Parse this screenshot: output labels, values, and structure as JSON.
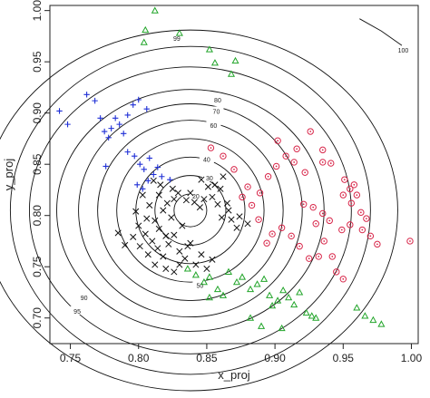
{
  "chart_data": {
    "type": "scatter",
    "xlabel": "x_proj",
    "ylabel": "y_proj",
    "xlim": [
      0.735,
      1.005
    ],
    "ylim": [
      0.675,
      1.005
    ],
    "xticks": [
      "0.75",
      "0.80",
      "0.85",
      "0.90",
      "0.95",
      "1.00"
    ],
    "yticks": [
      "0.70",
      "0.75",
      "0.80",
      "0.85",
      "0.90",
      "0.95",
      "1.00"
    ],
    "grid": false,
    "legend": "none",
    "contour_center": [
      0.838,
      0.805
    ],
    "contours": [
      {
        "level": "20",
        "rx": 0.012,
        "ry": 0.016,
        "label_at": [
          0.842,
          0.819
        ]
      },
      {
        "level": "30",
        "rx": 0.026,
        "ry": 0.034,
        "label_at": [
          0.852,
          0.837
        ]
      },
      {
        "level": "40",
        "rx": 0.04,
        "ry": 0.052,
        "label_at": [
          0.85,
          0.855
        ]
      },
      {
        "level": "50",
        "rx": 0.054,
        "ry": 0.07,
        "label_at": [
          0.845,
          0.732
        ]
      },
      {
        "level": "60",
        "rx": 0.068,
        "ry": 0.088,
        "label_at": [
          0.855,
          0.888
        ]
      },
      {
        "level": "70",
        "rx": 0.082,
        "ry": 0.104,
        "label_at": [
          0.857,
          0.902
        ]
      },
      {
        "level": "80",
        "rx": 0.098,
        "ry": 0.118,
        "label_at": [
          0.858,
          0.913
        ]
      },
      {
        "level": "90",
        "rx": 0.118,
        "ry": 0.14,
        "label_at": [
          0.76,
          0.72
        ]
      },
      {
        "level": "95",
        "rx": 0.132,
        "ry": 0.16,
        "label_at": [
          0.755,
          0.707
        ]
      },
      {
        "level": "99",
        "rx": 0.152,
        "ry": 0.176,
        "label_at": [
          0.828,
          0.973
        ]
      }
    ],
    "extra_contour": {
      "level": "100",
      "points": [
        [
          0.962,
          0.992
        ],
        [
          0.978,
          0.98
        ],
        [
          0.993,
          0.966
        ]
      ],
      "label_at": [
        0.994,
        0.959
      ]
    },
    "series": [
      {
        "marker": "plus",
        "color": "#1f2fd6",
        "points": [
          [
            0.742,
            0.902
          ],
          [
            0.748,
            0.889
          ],
          [
            0.762,
            0.918
          ],
          [
            0.768,
            0.912
          ],
          [
            0.772,
            0.895
          ],
          [
            0.775,
            0.882
          ],
          [
            0.778,
            0.876
          ],
          [
            0.78,
            0.885
          ],
          [
            0.783,
            0.895
          ],
          [
            0.786,
            0.889
          ],
          [
            0.789,
            0.88
          ],
          [
            0.792,
            0.898
          ],
          [
            0.796,
            0.908
          ],
          [
            0.8,
            0.913
          ],
          [
            0.806,
            0.904
          ],
          [
            0.792,
            0.862
          ],
          [
            0.797,
            0.858
          ],
          [
            0.801,
            0.85
          ],
          [
            0.804,
            0.845
          ],
          [
            0.808,
            0.856
          ],
          [
            0.811,
            0.84
          ],
          [
            0.814,
            0.847
          ],
          [
            0.817,
            0.838
          ],
          [
            0.799,
            0.83
          ],
          [
            0.803,
            0.826
          ],
          [
            0.807,
            0.834
          ],
          [
            0.823,
            0.835
          ],
          [
            0.776,
            0.848
          ]
        ]
      },
      {
        "marker": "cross",
        "color": "#111111",
        "points": [
          [
            0.803,
            0.82
          ],
          [
            0.808,
            0.81
          ],
          [
            0.812,
            0.795
          ],
          [
            0.815,
            0.82
          ],
          [
            0.818,
            0.805
          ],
          [
            0.821,
            0.812
          ],
          [
            0.824,
            0.798
          ],
          [
            0.826,
            0.816
          ],
          [
            0.829,
            0.822
          ],
          [
            0.832,
            0.79
          ],
          [
            0.835,
            0.815
          ],
          [
            0.838,
            0.822
          ],
          [
            0.841,
            0.813
          ],
          [
            0.845,
            0.808
          ],
          [
            0.848,
            0.816
          ],
          [
            0.851,
            0.828
          ],
          [
            0.854,
            0.818
          ],
          [
            0.858,
            0.811
          ],
          [
            0.861,
            0.798
          ],
          [
            0.865,
            0.812
          ],
          [
            0.868,
            0.796
          ],
          [
            0.872,
            0.788
          ],
          [
            0.8,
            0.79
          ],
          [
            0.805,
            0.782
          ],
          [
            0.81,
            0.775
          ],
          [
            0.814,
            0.768
          ],
          [
            0.818,
            0.76
          ],
          [
            0.822,
            0.772
          ],
          [
            0.826,
            0.781
          ],
          [
            0.83,
            0.765
          ],
          [
            0.834,
            0.758
          ],
          [
            0.838,
            0.773
          ],
          [
            0.842,
            0.752
          ],
          [
            0.846,
            0.762
          ],
          [
            0.85,
            0.748
          ],
          [
            0.854,
            0.757
          ],
          [
            0.82,
            0.748
          ],
          [
            0.826,
            0.745
          ],
          [
            0.83,
            0.752
          ],
          [
            0.812,
            0.752
          ],
          [
            0.807,
            0.762
          ],
          [
            0.801,
            0.77
          ],
          [
            0.796,
            0.779
          ],
          [
            0.79,
            0.771
          ],
          [
            0.785,
            0.783
          ],
          [
            0.798,
            0.804
          ],
          [
            0.806,
            0.797
          ],
          [
            0.815,
            0.787
          ],
          [
            0.82,
            0.78
          ],
          [
            0.846,
            0.835
          ],
          [
            0.856,
            0.83
          ],
          [
            0.86,
            0.826
          ],
          [
            0.862,
            0.838
          ],
          [
            0.866,
            0.805
          ],
          [
            0.874,
            0.799
          ],
          [
            0.88,
            0.792
          ],
          [
            0.836,
            0.77
          ],
          [
            0.816,
            0.83
          ],
          [
            0.811,
            0.834
          ],
          [
            0.825,
            0.826
          ]
        ]
      },
      {
        "marker": "triangle",
        "color": "#22a52a",
        "points": [
          [
            0.812,
            1.0
          ],
          [
            0.805,
            0.981
          ],
          [
            0.804,
            0.969
          ],
          [
            0.83,
            0.978
          ],
          [
            0.852,
            0.962
          ],
          [
            0.856,
            0.949
          ],
          [
            0.871,
            0.951
          ],
          [
            0.868,
            0.938
          ],
          [
            0.836,
            0.748
          ],
          [
            0.842,
            0.742
          ],
          [
            0.848,
            0.735
          ],
          [
            0.852,
            0.74
          ],
          [
            0.858,
            0.728
          ],
          [
            0.862,
            0.722
          ],
          [
            0.852,
            0.72
          ],
          [
            0.866,
            0.745
          ],
          [
            0.872,
            0.735
          ],
          [
            0.876,
            0.74
          ],
          [
            0.882,
            0.728
          ],
          [
            0.887,
            0.733
          ],
          [
            0.892,
            0.738
          ],
          [
            0.896,
            0.722
          ],
          [
            0.902,
            0.717
          ],
          [
            0.906,
            0.727
          ],
          [
            0.91,
            0.72
          ],
          [
            0.914,
            0.713
          ],
          [
            0.918,
            0.725
          ],
          [
            0.923,
            0.705
          ],
          [
            0.927,
            0.702
          ],
          [
            0.882,
            0.7
          ],
          [
            0.89,
            0.692
          ],
          [
            0.905,
            0.69
          ],
          [
            0.96,
            0.71
          ],
          [
            0.966,
            0.702
          ],
          [
            0.972,
            0.698
          ],
          [
            0.978,
            0.694
          ],
          [
            0.93,
            0.7
          ],
          [
            0.898,
            0.712
          ]
        ]
      },
      {
        "marker": "circle-dot",
        "color": "#d8274a",
        "points": [
          [
            0.926,
            0.882
          ],
          [
            0.935,
            0.864
          ],
          [
            0.902,
            0.873
          ],
          [
            0.916,
            0.865
          ],
          [
            0.935,
            0.852
          ],
          [
            0.941,
            0.851
          ],
          [
            0.951,
            0.835
          ],
          [
            0.95,
            0.82
          ],
          [
            0.955,
            0.826
          ],
          [
            0.958,
            0.83
          ],
          [
            0.96,
            0.82
          ],
          [
            0.956,
            0.812
          ],
          [
            0.963,
            0.803
          ],
          [
            0.967,
            0.797
          ],
          [
            0.955,
            0.791
          ],
          [
            0.949,
            0.786
          ],
          [
            0.94,
            0.795
          ],
          [
            0.935,
            0.802
          ],
          [
            0.928,
            0.808
          ],
          [
            0.921,
            0.811
          ],
          [
            0.93,
            0.792
          ],
          [
            0.936,
            0.775
          ],
          [
            0.932,
            0.76
          ],
          [
            0.925,
            0.758
          ],
          [
            0.918,
            0.77
          ],
          [
            0.912,
            0.78
          ],
          [
            0.905,
            0.788
          ],
          [
            0.898,
            0.782
          ],
          [
            0.894,
            0.773
          ],
          [
            0.888,
            0.796
          ],
          [
            0.883,
            0.81
          ],
          [
            0.876,
            0.818
          ],
          [
            0.88,
            0.828
          ],
          [
            0.889,
            0.822
          ],
          [
            0.895,
            0.838
          ],
          [
            0.901,
            0.848
          ],
          [
            0.908,
            0.858
          ],
          [
            0.914,
            0.852
          ],
          [
            0.922,
            0.842
          ],
          [
            0.964,
            0.786
          ],
          [
            0.97,
            0.78
          ],
          [
            0.975,
            0.772
          ],
          [
            0.999,
            0.775
          ],
          [
            0.945,
            0.745
          ],
          [
            0.95,
            0.738
          ],
          [
            0.942,
            0.76
          ],
          [
            0.87,
            0.845
          ],
          [
            0.862,
            0.858
          ],
          [
            0.853,
            0.866
          ]
        ]
      }
    ]
  }
}
